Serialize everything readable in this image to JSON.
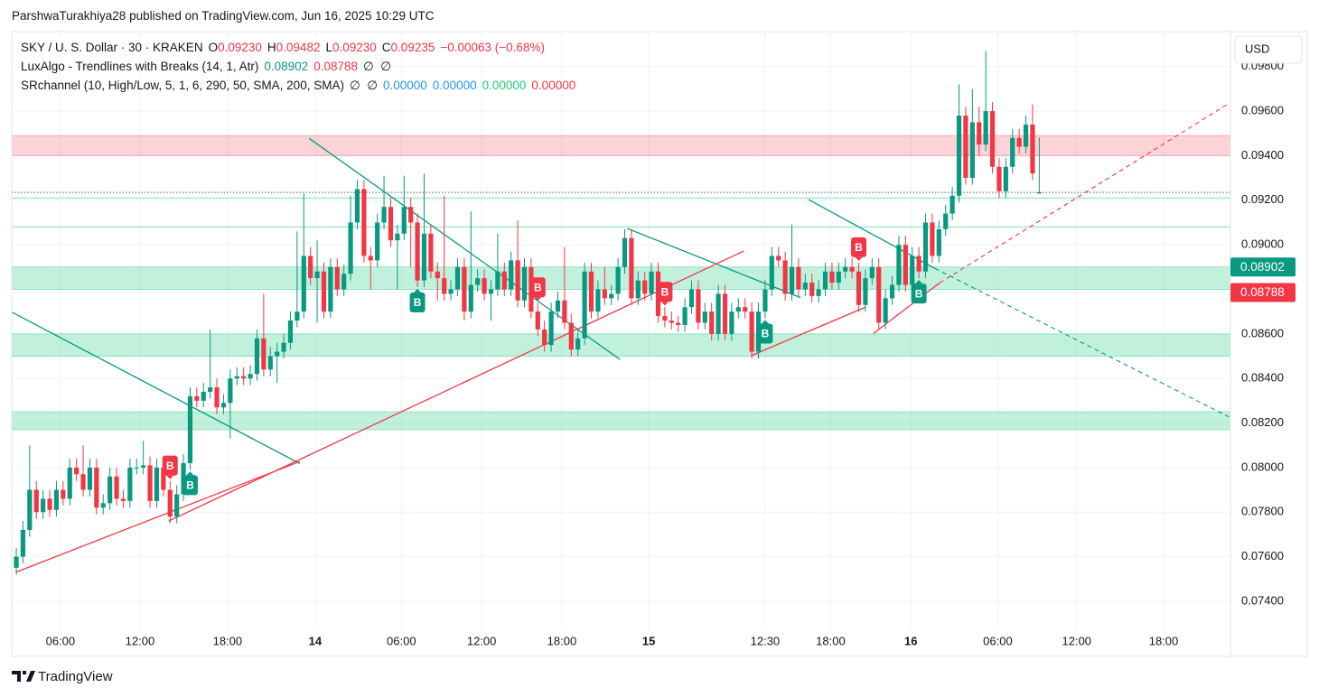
{
  "header": {
    "publisher": "ParshwaTurakhiya28 published on TradingView.com, Jun 16, 2025 10:29 UTC",
    "footer": "TradingView"
  },
  "legend": {
    "symbol": "SKY / U. S. Dollar · 30 · KRAKEN",
    "ohlc": [
      {
        "key": "O",
        "value": "0.09230"
      },
      {
        "key": "H",
        "value": "0.09482"
      },
      {
        "key": "L",
        "value": "0.09230"
      },
      {
        "key": "C",
        "value": "0.09235"
      }
    ],
    "change": "−0.00063 (−0.68%)",
    "indicator1": {
      "name": "LuxAlgo - Trendlines with Breaks (14, 1, Atr)",
      "values": [
        {
          "text": "0.08902",
          "color": "#089981"
        },
        {
          "text": "0.08788",
          "color": "#f23645"
        }
      ],
      "tail": "∅  ∅"
    },
    "indicator2": {
      "name": "SRchannel (10, High/Low, 5, 1, 6, 290, 50, SMA, 200, SMA)",
      "tail": "∅  ∅",
      "values": [
        {
          "text": "0.00000",
          "color": "#2196f3"
        },
        {
          "text": "0.00000",
          "color": "#2196f3"
        },
        {
          "text": "0.00000",
          "color": "#22c77a"
        },
        {
          "text": "0.00000",
          "color": "#f23645"
        }
      ]
    }
  },
  "chart_data": {
    "type": "candlestick",
    "currency": "USD",
    "up_color": "#089981",
    "down_color": "#f23645",
    "grid": true,
    "xlim": [
      -0.68,
      181.6
    ],
    "ylim": [
      0.07274,
      0.09957
    ],
    "xticks": [
      {
        "value": 6.6,
        "label": "06:00"
      },
      {
        "value": 18.5,
        "label": "12:00"
      },
      {
        "value": 31.6,
        "label": "18:00"
      },
      {
        "value": 44.7,
        "label": "14",
        "bold": true
      },
      {
        "value": 57.6,
        "label": "06:00"
      },
      {
        "value": 69.6,
        "label": "12:00"
      },
      {
        "value": 81.6,
        "label": "18:00"
      },
      {
        "value": 94.6,
        "label": "15",
        "bold": true
      },
      {
        "value": 112,
        "label": "12:30"
      },
      {
        "value": 121.8,
        "label": "18:00"
      },
      {
        "value": 133.8,
        "label": "16",
        "bold": true
      },
      {
        "value": 146.8,
        "label": "06:00"
      },
      {
        "value": 158.6,
        "label": "12:00"
      },
      {
        "value": 171.6,
        "label": "18:00"
      }
    ],
    "yticks": [
      {
        "value": 0.074,
        "label": "0.07400"
      },
      {
        "value": 0.076,
        "label": "0.07600"
      },
      {
        "value": 0.078,
        "label": "0.07800"
      },
      {
        "value": 0.08,
        "label": "0.08000"
      },
      {
        "value": 0.082,
        "label": "0.08200"
      },
      {
        "value": 0.084,
        "label": "0.08400"
      },
      {
        "value": 0.086,
        "label": "0.08600"
      },
      {
        "value": 0.088,
        "label": "0.08800"
      },
      {
        "value": 0.09,
        "label": "0.09000"
      },
      {
        "value": 0.092,
        "label": "0.09200"
      },
      {
        "value": 0.094,
        "label": "0.09400"
      },
      {
        "value": 0.096,
        "label": "0.09600"
      },
      {
        "value": 0.098,
        "label": "0.09800"
      }
    ],
    "open": [
      0.0755,
      0.076,
      0.0772,
      0.079,
      0.078,
      0.0786,
      0.0781,
      0.079,
      0.0786,
      0.08,
      0.0797,
      0.079,
      0.08,
      0.0782,
      0.0784,
      0.0796,
      0.0786,
      0.0785,
      0.08,
      0.08,
      0.0801,
      0.0785,
      0.08,
      0.079,
      0.0778,
      0.0788,
      0.0802,
      0.0832,
      0.083,
      0.0834,
      0.0836,
      0.0827,
      0.0829,
      0.084,
      0.0841,
      0.084,
      0.0842,
      0.0858,
      0.0844,
      0.085,
      0.0852,
      0.0856,
      0.0866,
      0.087,
      0.0895,
      0.0885,
      0.0888,
      0.087,
      0.089,
      0.088,
      0.0887,
      0.091,
      0.0925,
      0.0895,
      0.0893,
      0.091,
      0.0917,
      0.0902,
      0.0905,
      0.0917,
      0.091,
      0.0884,
      0.0905,
      0.0888,
      0.0885,
      0.0878,
      0.088,
      0.089,
      0.087,
      0.0882,
      0.0885,
      0.0878,
      0.088,
      0.0888,
      0.088,
      0.0893,
      0.0875,
      0.089,
      0.087,
      0.0862,
      0.0855,
      0.087,
      0.0875,
      0.0865,
      0.0853,
      0.0858,
      0.0888,
      0.087,
      0.088,
      0.0876,
      0.0878,
      0.089,
      0.0903,
      0.0876,
      0.0884,
      0.0878,
      0.0888,
      0.0868,
      0.0866,
      0.0865,
      0.0864,
      0.0872,
      0.088,
      0.0865,
      0.087,
      0.086,
      0.0878,
      0.086,
      0.087,
      0.0872,
      0.087,
      0.0852,
      0.087,
      0.088,
      0.0895,
      0.0893,
      0.0878,
      0.089,
      0.088,
      0.0883,
      0.0877,
      0.088,
      0.0888,
      0.0883,
      0.0888,
      0.089,
      0.0888,
      0.0873,
      0.0885,
      0.089,
      0.0865,
      0.0876,
      0.0882,
      0.09,
      0.0882,
      0.0895,
      0.0888,
      0.091,
      0.0895,
      0.0907,
      0.0914,
      0.0922,
      0.0958,
      0.093,
      0.0955,
      0.0945,
      0.096,
      0.0935,
      0.0924,
      0.0935,
      0.0948,
      0.0944,
      0.0954,
      0.0923
    ],
    "high": [
      0.0764,
      0.0776,
      0.081,
      0.0794,
      0.079,
      0.079,
      0.0794,
      0.0794,
      0.0804,
      0.0804,
      0.081,
      0.0804,
      0.0804,
      0.0788,
      0.08,
      0.08,
      0.079,
      0.0804,
      0.0804,
      0.0812,
      0.0805,
      0.0804,
      0.0804,
      0.0794,
      0.0792,
      0.0806,
      0.0836,
      0.0836,
      0.0838,
      0.0862,
      0.084,
      0.0833,
      0.0844,
      0.0845,
      0.0845,
      0.0846,
      0.0862,
      0.0878,
      0.0854,
      0.0856,
      0.086,
      0.087,
      0.0906,
      0.0923,
      0.0899,
      0.0902,
      0.0892,
      0.0894,
      0.0894,
      0.0891,
      0.0922,
      0.0929,
      0.0929,
      0.0899,
      0.0914,
      0.0931,
      0.0921,
      0.0909,
      0.0931,
      0.0921,
      0.0914,
      0.0932,
      0.0909,
      0.0892,
      0.0922,
      0.0884,
      0.0894,
      0.0894,
      0.0915,
      0.0889,
      0.0889,
      0.0884,
      0.0905,
      0.0892,
      0.0897,
      0.0911,
      0.0894,
      0.0894,
      0.0874,
      0.0866,
      0.0874,
      0.0879,
      0.0899,
      0.0869,
      0.0862,
      0.0892,
      0.0892,
      0.0884,
      0.089,
      0.0882,
      0.0894,
      0.0907,
      0.0907,
      0.0888,
      0.0888,
      0.0892,
      0.0892,
      0.0872,
      0.087,
      0.0868,
      0.0876,
      0.0884,
      0.0884,
      0.0874,
      0.0874,
      0.0882,
      0.0882,
      0.0874,
      0.0876,
      0.0876,
      0.0874,
      0.0874,
      0.0884,
      0.0899,
      0.0899,
      0.0897,
      0.0909,
      0.0894,
      0.0887,
      0.0887,
      0.0884,
      0.0892,
      0.0892,
      0.0892,
      0.0894,
      0.0894,
      0.0892,
      0.0889,
      0.0894,
      0.0894,
      0.088,
      0.0886,
      0.0904,
      0.0904,
      0.0899,
      0.0899,
      0.0914,
      0.0914,
      0.0911,
      0.0918,
      0.0926,
      0.0972,
      0.0962,
      0.097,
      0.0962,
      0.0987,
      0.0964,
      0.0939,
      0.0939,
      0.0952,
      0.0952,
      0.0958,
      0.0963,
      0.09482
    ],
    "low": [
      0.0752,
      0.0757,
      0.0769,
      0.0777,
      0.0777,
      0.0778,
      0.0778,
      0.0783,
      0.0783,
      0.0794,
      0.0787,
      0.0787,
      0.0779,
      0.0779,
      0.0781,
      0.0783,
      0.0782,
      0.0782,
      0.0797,
      0.0797,
      0.0782,
      0.0782,
      0.0787,
      0.0775,
      0.0775,
      0.0785,
      0.0799,
      0.0827,
      0.0827,
      0.0831,
      0.0824,
      0.0824,
      0.0813,
      0.0837,
      0.0837,
      0.0837,
      0.0839,
      0.0841,
      0.0841,
      0.0838,
      0.0849,
      0.0853,
      0.0863,
      0.0867,
      0.0882,
      0.0865,
      0.0867,
      0.0867,
      0.0877,
      0.0877,
      0.0884,
      0.0907,
      0.0892,
      0.088,
      0.089,
      0.0907,
      0.0899,
      0.088,
      0.0902,
      0.089,
      0.0881,
      0.0881,
      0.0885,
      0.0875,
      0.0875,
      0.0875,
      0.0877,
      0.0866,
      0.0867,
      0.0879,
      0.0875,
      0.0866,
      0.0877,
      0.0877,
      0.0877,
      0.0872,
      0.0872,
      0.0867,
      0.0859,
      0.0852,
      0.0852,
      0.0867,
      0.0862,
      0.085,
      0.085,
      0.0855,
      0.0867,
      0.0867,
      0.0873,
      0.0873,
      0.0875,
      0.0887,
      0.0873,
      0.0873,
      0.0875,
      0.0875,
      0.0865,
      0.0863,
      0.0862,
      0.0861,
      0.0861,
      0.0869,
      0.0862,
      0.0862,
      0.0857,
      0.0857,
      0.0857,
      0.0857,
      0.0867,
      0.0867,
      0.0849,
      0.0849,
      0.0867,
      0.0877,
      0.089,
      0.0875,
      0.0875,
      0.0877,
      0.0877,
      0.0874,
      0.0874,
      0.0877,
      0.088,
      0.088,
      0.0885,
      0.0885,
      0.087,
      0.087,
      0.0882,
      0.0862,
      0.0862,
      0.0873,
      0.0879,
      0.0879,
      0.0879,
      0.0885,
      0.0885,
      0.0892,
      0.0892,
      0.0904,
      0.0911,
      0.0919,
      0.0927,
      0.0927,
      0.094,
      0.0942,
      0.0932,
      0.0921,
      0.0921,
      0.0932,
      0.0941,
      0.0941,
      0.0929,
      0.0923
    ],
    "close": [
      0.076,
      0.0772,
      0.079,
      0.078,
      0.0786,
      0.0781,
      0.079,
      0.0786,
      0.08,
      0.0797,
      0.079,
      0.08,
      0.0782,
      0.0784,
      0.0796,
      0.0786,
      0.0785,
      0.08,
      0.08,
      0.0801,
      0.0785,
      0.08,
      0.079,
      0.0778,
      0.0788,
      0.0802,
      0.0832,
      0.083,
      0.0834,
      0.0836,
      0.0827,
      0.0829,
      0.084,
      0.0841,
      0.084,
      0.0842,
      0.0858,
      0.0844,
      0.085,
      0.0852,
      0.0856,
      0.0866,
      0.087,
      0.0895,
      0.0885,
      0.0888,
      0.087,
      0.089,
      0.088,
      0.0887,
      0.091,
      0.0925,
      0.0895,
      0.0893,
      0.091,
      0.0917,
      0.0902,
      0.0905,
      0.0917,
      0.091,
      0.0884,
      0.0905,
      0.0888,
      0.0885,
      0.0878,
      0.088,
      0.089,
      0.087,
      0.0882,
      0.0885,
      0.0878,
      0.088,
      0.0888,
      0.088,
      0.0893,
      0.0875,
      0.089,
      0.087,
      0.0862,
      0.0855,
      0.087,
      0.0875,
      0.0865,
      0.0853,
      0.0858,
      0.0888,
      0.087,
      0.088,
      0.0876,
      0.0878,
      0.089,
      0.0903,
      0.0876,
      0.0884,
      0.0878,
      0.0888,
      0.0868,
      0.0866,
      0.0865,
      0.0864,
      0.0872,
      0.088,
      0.0865,
      0.087,
      0.086,
      0.0878,
      0.086,
      0.087,
      0.0872,
      0.087,
      0.0852,
      0.087,
      0.088,
      0.0895,
      0.0893,
      0.0878,
      0.089,
      0.088,
      0.0883,
      0.0877,
      0.088,
      0.0888,
      0.0883,
      0.0888,
      0.089,
      0.0888,
      0.0873,
      0.0885,
      0.089,
      0.0865,
      0.0876,
      0.0882,
      0.09,
      0.0882,
      0.0895,
      0.0888,
      0.091,
      0.0895,
      0.0907,
      0.0914,
      0.0922,
      0.0958,
      0.093,
      0.0955,
      0.0945,
      0.096,
      0.0935,
      0.0924,
      0.0935,
      0.0948,
      0.0944,
      0.0954,
      0.0932,
      0.09235
    ],
    "zones": [
      {
        "range": [
          0.094,
          0.0949
        ],
        "color": "rgba(242,54,69,0.22)",
        "border": "#f7a9b0"
      },
      {
        "range": [
          0.088,
          0.089
        ],
        "color": "rgba(8,200,120,0.25)",
        "border": "#8fe3bd"
      },
      {
        "range": [
          0.085,
          0.086
        ],
        "color": "rgba(8,200,120,0.25)",
        "border": "#8fe3bd"
      },
      {
        "range": [
          0.0817,
          0.0825
        ],
        "color": "rgba(8,200,120,0.25)",
        "border": "#8fe3bd"
      }
    ],
    "levels": [
      {
        "value": 0.0921,
        "color": "#a6e9c9"
      },
      {
        "value": 0.0908,
        "color": "#a6e9c9"
      }
    ],
    "trendlines": [
      {
        "color": "#089981",
        "x": [
          -0.68,
          42.4
        ],
        "y": [
          0.08698,
          0.08018
        ]
      },
      {
        "color": "#089981",
        "x": [
          43.8,
          90.3
        ],
        "y": [
          0.09478,
          0.08485
        ]
      },
      {
        "color": "#089981",
        "x": [
          91.4,
          117.3
        ],
        "y": [
          0.09073,
          0.08763
        ]
      },
      {
        "color": "#089981",
        "x": [
          118.5,
          137.4
        ],
        "y": [
          0.09203,
          0.08894
        ],
        "extension": {
          "x": 181.4,
          "y": 0.08227
        }
      },
      {
        "color": "#f23645",
        "x": [
          0,
          42.4
        ],
        "y": [
          0.07531,
          0.08027
        ]
      },
      {
        "color": "#f23645",
        "x": [
          22.8,
          108.8
        ],
        "y": [
          0.0776,
          0.08972
        ]
      },
      {
        "color": "#f23645",
        "x": [
          109.9,
          127
        ],
        "y": [
          0.08502,
          0.0872
        ]
      },
      {
        "color": "#f23645",
        "x": [
          128.2,
          138.1
        ],
        "y": [
          0.08602,
          0.08829
        ],
        "extension": {
          "x": 181.6,
          "y": 0.09639
        }
      }
    ],
    "breaks": [
      {
        "x": 23,
        "label": "B",
        "color": "#f23645"
      },
      {
        "x": 26,
        "label": "B",
        "color": "#089981"
      },
      {
        "x": 60,
        "label": "B",
        "color": "#089981"
      },
      {
        "x": 78,
        "label": "B",
        "color": "#f23645"
      },
      {
        "x": 97,
        "label": "B",
        "color": "#f23645"
      },
      {
        "x": 112,
        "label": "B",
        "color": "#089981"
      },
      {
        "x": 126,
        "label": "B",
        "color": "#f23645"
      },
      {
        "x": 135,
        "label": "B",
        "color": "#089981"
      }
    ],
    "last_price_line": {
      "value": 0.09235,
      "color": "#4a5d8a"
    },
    "price_labels": [
      {
        "value": 0.08902,
        "color": "#089981"
      },
      {
        "value": 0.08788,
        "color": "#f23645"
      }
    ]
  }
}
